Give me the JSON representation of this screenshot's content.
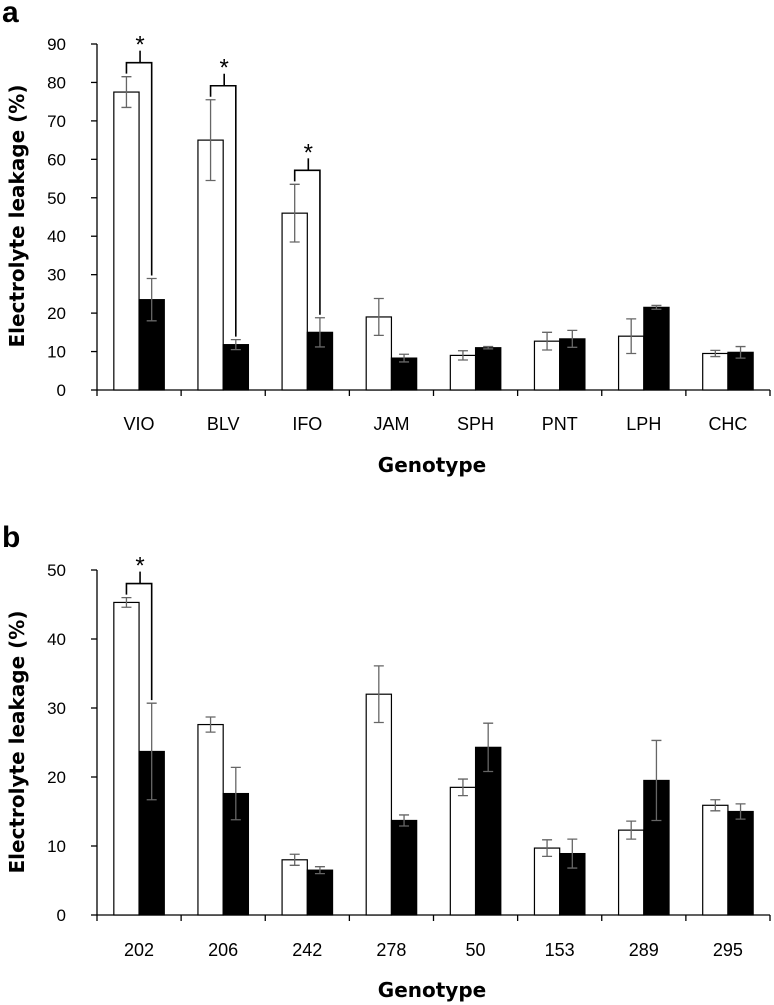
{
  "chart_data": [
    {
      "panel_label": "a",
      "type": "bar",
      "xlabel": "Genotype",
      "ylabel": "Electrolyte leakage (%)",
      "ylim": [
        0,
        90
      ],
      "yticks": [
        "0",
        "10",
        "20",
        "30",
        "40",
        "50",
        "60",
        "70",
        "80",
        "90"
      ],
      "categories": [
        "VIO",
        "BLV",
        "IFO",
        "JAM",
        "SPH",
        "PNT",
        "LPH",
        "CHC"
      ],
      "series": [
        {
          "name": "white bars",
          "color": "#ffffff",
          "values": [
            77.5,
            65,
            46,
            19,
            9,
            12.7,
            14,
            9.5
          ],
          "errors": [
            4,
            10.5,
            7.5,
            4.8,
            1.2,
            2.3,
            4.5,
            0.8
          ]
        },
        {
          "name": "black bars",
          "color": "#000000",
          "values": [
            23.5,
            11.8,
            15,
            8.3,
            11,
            13.3,
            21.5,
            9.8
          ],
          "errors": [
            5.5,
            1.3,
            3.8,
            1,
            0.3,
            2.2,
            0.5,
            1.5
          ]
        }
      ],
      "significance": [
        {
          "index": 0,
          "label": "*"
        },
        {
          "index": 1,
          "label": "*"
        },
        {
          "index": 2,
          "label": "*"
        }
      ]
    },
    {
      "panel_label": "b",
      "type": "bar",
      "xlabel": "Genotype",
      "ylabel": "Electrolyte leakage (%)",
      "ylim": [
        0,
        50
      ],
      "yticks": [
        "0",
        "10",
        "20",
        "30",
        "40",
        "50"
      ],
      "categories": [
        "202",
        "206",
        "242",
        "278",
        "50",
        "153",
        "289",
        "295"
      ],
      "series": [
        {
          "name": "white bars",
          "color": "#ffffff",
          "values": [
            45.3,
            27.6,
            8,
            32,
            18.5,
            9.7,
            12.3,
            15.9
          ],
          "errors": [
            0.7,
            1.1,
            0.8,
            4.1,
            1.2,
            1.2,
            1.3,
            0.8
          ]
        },
        {
          "name": "black bars",
          "color": "#000000",
          "values": [
            23.7,
            17.6,
            6.5,
            13.7,
            24.3,
            8.9,
            19.5,
            15
          ],
          "errors": [
            7,
            3.8,
            0.5,
            0.8,
            3.5,
            2.1,
            5.8,
            1.1
          ]
        }
      ],
      "significance": [
        {
          "index": 0,
          "label": "*"
        }
      ]
    }
  ]
}
